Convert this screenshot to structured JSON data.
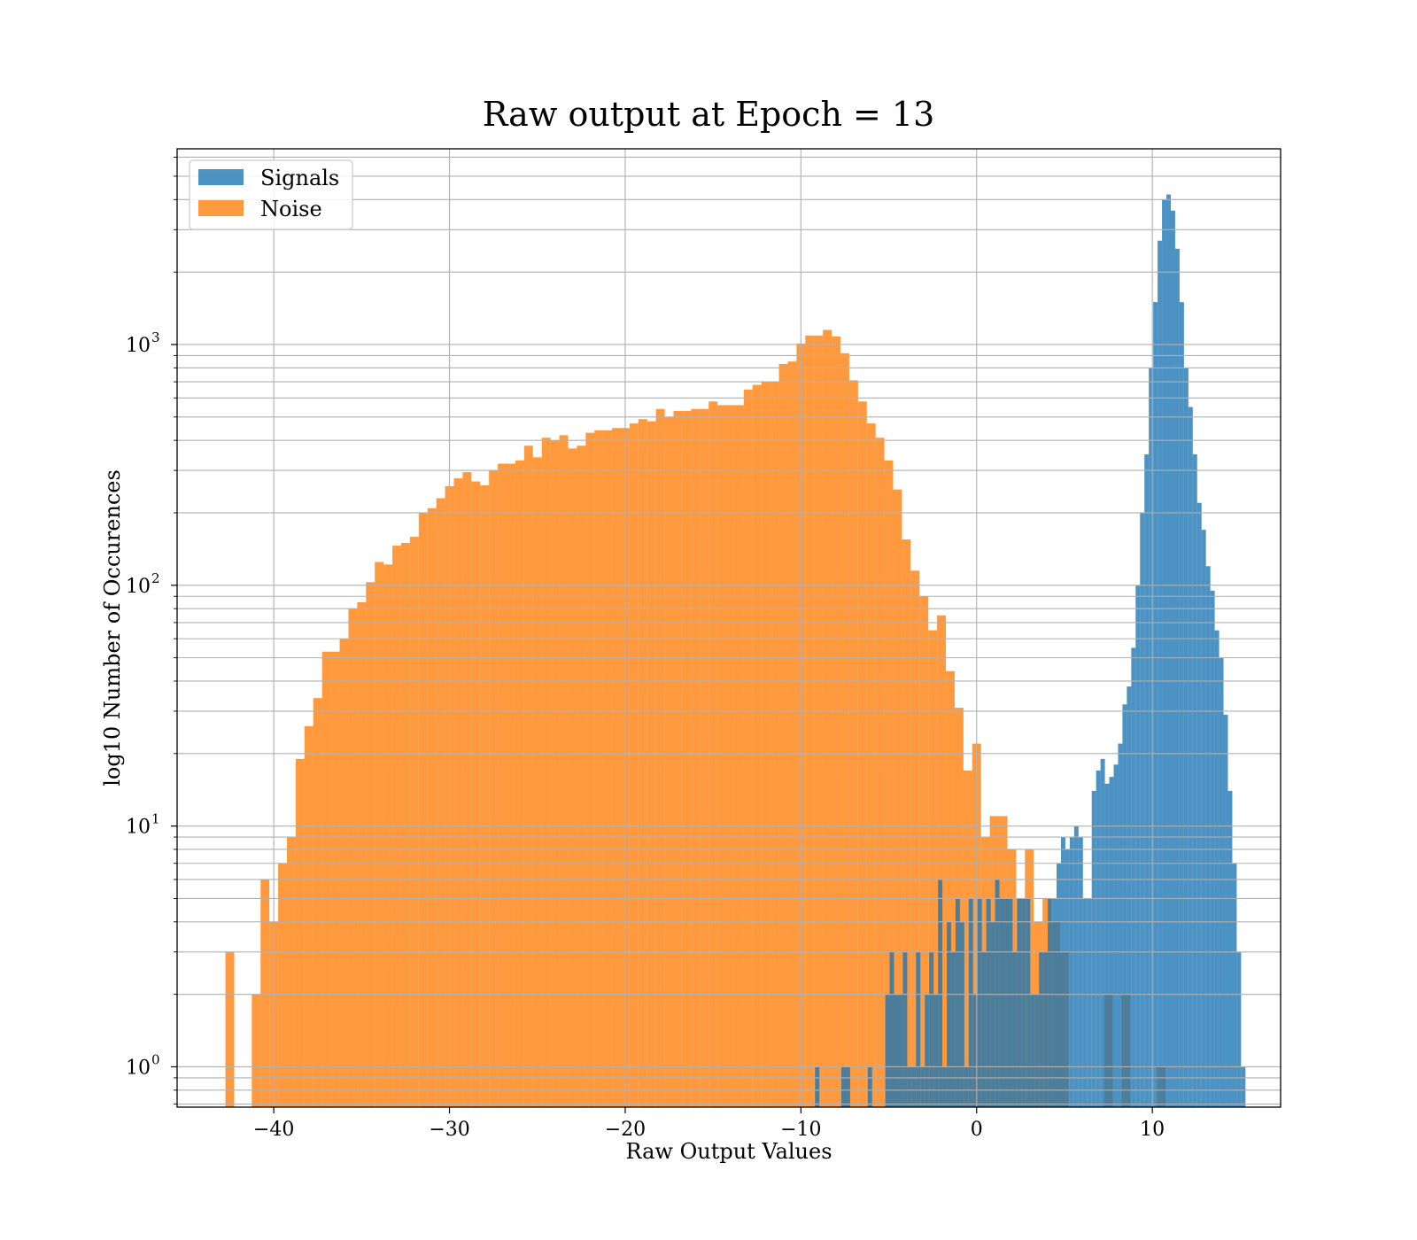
{
  "colors": {
    "signals": "#1f77b4",
    "noise": "#ff7f0e",
    "grid": "#b0b0b0"
  },
  "chart_data": {
    "type": "bar",
    "subtype": "overlapping-histogram",
    "title": "Raw output at Epoch = 13",
    "xlabel": "Raw Output Values",
    "ylabel": "log10 Number of Occurences",
    "xlim": [
      -45.5,
      17.3
    ],
    "ylim": [
      0.68,
      6500
    ],
    "yscale": "log",
    "grid": true,
    "legend_position": "top-left",
    "x_ticks": [
      {
        "value": -40,
        "label": "−40"
      },
      {
        "value": -30,
        "label": "−30"
      },
      {
        "value": -20,
        "label": "−20"
      },
      {
        "value": -10,
        "label": "−10"
      },
      {
        "value": 0,
        "label": "0"
      },
      {
        "value": 10,
        "label": "10"
      }
    ],
    "y_ticks": [
      {
        "value": 1,
        "base": "10",
        "exp": "0"
      },
      {
        "value": 10,
        "base": "10",
        "exp": "1"
      },
      {
        "value": 100,
        "base": "10",
        "exp": "2"
      },
      {
        "value": 1000,
        "base": "10",
        "exp": "3"
      }
    ],
    "series": [
      {
        "name": "Noise",
        "bin_start": -42.75,
        "bin_width": 0.5,
        "values": [
          3,
          0,
          0,
          2,
          6,
          4,
          7,
          9,
          19,
          26,
          34,
          53,
          53,
          60,
          80,
          85,
          103,
          125,
          122,
          146,
          150,
          159,
          200,
          209,
          230,
          258,
          278,
          295,
          270,
          260,
          300,
          320,
          320,
          330,
          380,
          340,
          410,
          400,
          420,
          370,
          380,
          430,
          440,
          440,
          450,
          450,
          470,
          490,
          480,
          540,
          500,
          530,
          530,
          540,
          540,
          580,
          560,
          560,
          560,
          650,
          680,
          700,
          700,
          830,
          850,
          1010,
          1090,
          1090,
          1150,
          1080,
          920,
          710,
          580,
          470,
          410,
          330,
          250,
          155,
          115,
          90,
          65,
          75,
          44,
          31,
          17,
          22,
          9,
          11,
          11,
          8,
          5,
          8,
          4,
          5,
          4,
          3,
          0,
          0,
          0,
          0,
          2,
          0,
          2,
          0,
          0,
          0,
          1
        ]
      },
      {
        "name": "Signals",
        "bin_start": -9.2,
        "bin_width": 0.25,
        "values": [
          1,
          0,
          0,
          0,
          0,
          0,
          1,
          1,
          0,
          0,
          0,
          0,
          1,
          0,
          0,
          0,
          2,
          3,
          2,
          2,
          3,
          1,
          1,
          3,
          1,
          2,
          3,
          2,
          6,
          1,
          4,
          3,
          5,
          4,
          1,
          5,
          2,
          5,
          3,
          5,
          4,
          6,
          5,
          5,
          5,
          3,
          5,
          5,
          5,
          2,
          2,
          3,
          3,
          5,
          5,
          7,
          9,
          8,
          9,
          10,
          9,
          5,
          5,
          14,
          17,
          19,
          15,
          16,
          18,
          22,
          32,
          38,
          55,
          100,
          200,
          350,
          800,
          1500,
          2700,
          4000,
          4200,
          3600,
          2500,
          1500,
          800,
          550,
          350,
          220,
          170,
          120,
          95,
          65,
          50,
          29,
          14,
          7,
          3,
          1
        ]
      }
    ]
  }
}
